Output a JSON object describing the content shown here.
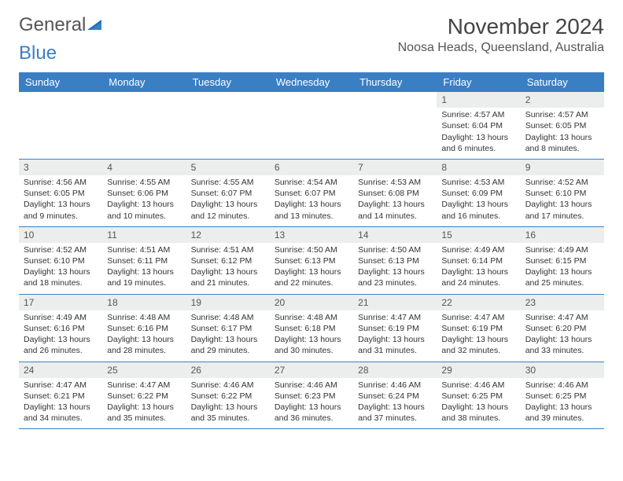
{
  "logo": {
    "word1": "General",
    "word2": "Blue"
  },
  "title": "November 2024",
  "location": "Noosa Heads, Queensland, Australia",
  "colors": {
    "header_bg": "#3a7fc4",
    "header_text": "#ffffff",
    "daynum_bg": "#eceded",
    "border": "#3a7fc4",
    "body_text": "#333333",
    "logo_gray": "#555555",
    "logo_blue": "#3a7fc4"
  },
  "day_names": [
    "Sunday",
    "Monday",
    "Tuesday",
    "Wednesday",
    "Thursday",
    "Friday",
    "Saturday"
  ],
  "weeks": [
    [
      {
        "n": "",
        "sr": "",
        "ss": "",
        "dl": ""
      },
      {
        "n": "",
        "sr": "",
        "ss": "",
        "dl": ""
      },
      {
        "n": "",
        "sr": "",
        "ss": "",
        "dl": ""
      },
      {
        "n": "",
        "sr": "",
        "ss": "",
        "dl": ""
      },
      {
        "n": "",
        "sr": "",
        "ss": "",
        "dl": ""
      },
      {
        "n": "1",
        "sr": "Sunrise: 4:57 AM",
        "ss": "Sunset: 6:04 PM",
        "dl": "Daylight: 13 hours and 6 minutes."
      },
      {
        "n": "2",
        "sr": "Sunrise: 4:57 AM",
        "ss": "Sunset: 6:05 PM",
        "dl": "Daylight: 13 hours and 8 minutes."
      }
    ],
    [
      {
        "n": "3",
        "sr": "Sunrise: 4:56 AM",
        "ss": "Sunset: 6:05 PM",
        "dl": "Daylight: 13 hours and 9 minutes."
      },
      {
        "n": "4",
        "sr": "Sunrise: 4:55 AM",
        "ss": "Sunset: 6:06 PM",
        "dl": "Daylight: 13 hours and 10 minutes."
      },
      {
        "n": "5",
        "sr": "Sunrise: 4:55 AM",
        "ss": "Sunset: 6:07 PM",
        "dl": "Daylight: 13 hours and 12 minutes."
      },
      {
        "n": "6",
        "sr": "Sunrise: 4:54 AM",
        "ss": "Sunset: 6:07 PM",
        "dl": "Daylight: 13 hours and 13 minutes."
      },
      {
        "n": "7",
        "sr": "Sunrise: 4:53 AM",
        "ss": "Sunset: 6:08 PM",
        "dl": "Daylight: 13 hours and 14 minutes."
      },
      {
        "n": "8",
        "sr": "Sunrise: 4:53 AM",
        "ss": "Sunset: 6:09 PM",
        "dl": "Daylight: 13 hours and 16 minutes."
      },
      {
        "n": "9",
        "sr": "Sunrise: 4:52 AM",
        "ss": "Sunset: 6:10 PM",
        "dl": "Daylight: 13 hours and 17 minutes."
      }
    ],
    [
      {
        "n": "10",
        "sr": "Sunrise: 4:52 AM",
        "ss": "Sunset: 6:10 PM",
        "dl": "Daylight: 13 hours and 18 minutes."
      },
      {
        "n": "11",
        "sr": "Sunrise: 4:51 AM",
        "ss": "Sunset: 6:11 PM",
        "dl": "Daylight: 13 hours and 19 minutes."
      },
      {
        "n": "12",
        "sr": "Sunrise: 4:51 AM",
        "ss": "Sunset: 6:12 PM",
        "dl": "Daylight: 13 hours and 21 minutes."
      },
      {
        "n": "13",
        "sr": "Sunrise: 4:50 AM",
        "ss": "Sunset: 6:13 PM",
        "dl": "Daylight: 13 hours and 22 minutes."
      },
      {
        "n": "14",
        "sr": "Sunrise: 4:50 AM",
        "ss": "Sunset: 6:13 PM",
        "dl": "Daylight: 13 hours and 23 minutes."
      },
      {
        "n": "15",
        "sr": "Sunrise: 4:49 AM",
        "ss": "Sunset: 6:14 PM",
        "dl": "Daylight: 13 hours and 24 minutes."
      },
      {
        "n": "16",
        "sr": "Sunrise: 4:49 AM",
        "ss": "Sunset: 6:15 PM",
        "dl": "Daylight: 13 hours and 25 minutes."
      }
    ],
    [
      {
        "n": "17",
        "sr": "Sunrise: 4:49 AM",
        "ss": "Sunset: 6:16 PM",
        "dl": "Daylight: 13 hours and 26 minutes."
      },
      {
        "n": "18",
        "sr": "Sunrise: 4:48 AM",
        "ss": "Sunset: 6:16 PM",
        "dl": "Daylight: 13 hours and 28 minutes."
      },
      {
        "n": "19",
        "sr": "Sunrise: 4:48 AM",
        "ss": "Sunset: 6:17 PM",
        "dl": "Daylight: 13 hours and 29 minutes."
      },
      {
        "n": "20",
        "sr": "Sunrise: 4:48 AM",
        "ss": "Sunset: 6:18 PM",
        "dl": "Daylight: 13 hours and 30 minutes."
      },
      {
        "n": "21",
        "sr": "Sunrise: 4:47 AM",
        "ss": "Sunset: 6:19 PM",
        "dl": "Daylight: 13 hours and 31 minutes."
      },
      {
        "n": "22",
        "sr": "Sunrise: 4:47 AM",
        "ss": "Sunset: 6:19 PM",
        "dl": "Daylight: 13 hours and 32 minutes."
      },
      {
        "n": "23",
        "sr": "Sunrise: 4:47 AM",
        "ss": "Sunset: 6:20 PM",
        "dl": "Daylight: 13 hours and 33 minutes."
      }
    ],
    [
      {
        "n": "24",
        "sr": "Sunrise: 4:47 AM",
        "ss": "Sunset: 6:21 PM",
        "dl": "Daylight: 13 hours and 34 minutes."
      },
      {
        "n": "25",
        "sr": "Sunrise: 4:47 AM",
        "ss": "Sunset: 6:22 PM",
        "dl": "Daylight: 13 hours and 35 minutes."
      },
      {
        "n": "26",
        "sr": "Sunrise: 4:46 AM",
        "ss": "Sunset: 6:22 PM",
        "dl": "Daylight: 13 hours and 35 minutes."
      },
      {
        "n": "27",
        "sr": "Sunrise: 4:46 AM",
        "ss": "Sunset: 6:23 PM",
        "dl": "Daylight: 13 hours and 36 minutes."
      },
      {
        "n": "28",
        "sr": "Sunrise: 4:46 AM",
        "ss": "Sunset: 6:24 PM",
        "dl": "Daylight: 13 hours and 37 minutes."
      },
      {
        "n": "29",
        "sr": "Sunrise: 4:46 AM",
        "ss": "Sunset: 6:25 PM",
        "dl": "Daylight: 13 hours and 38 minutes."
      },
      {
        "n": "30",
        "sr": "Sunrise: 4:46 AM",
        "ss": "Sunset: 6:25 PM",
        "dl": "Daylight: 13 hours and 39 minutes."
      }
    ]
  ]
}
